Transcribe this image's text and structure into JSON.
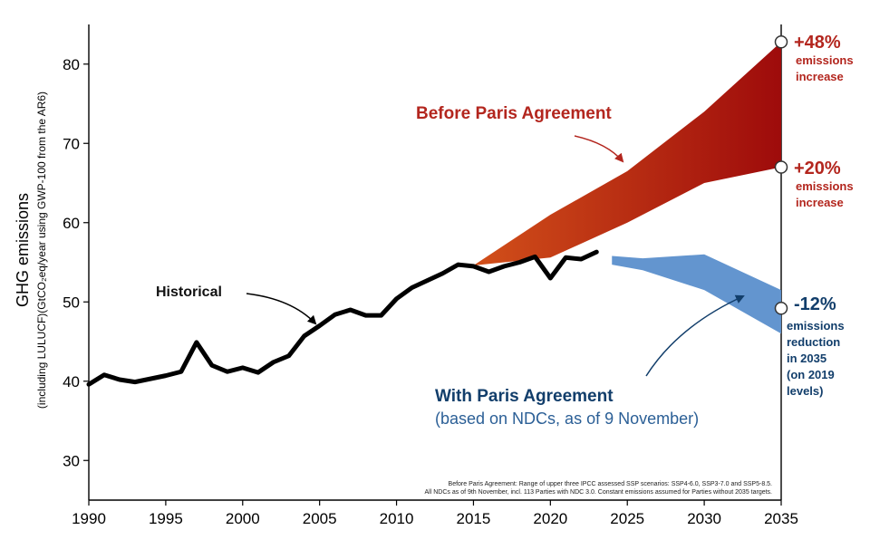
{
  "chart_data": {
    "type": "line",
    "ylabel": "GHG emissions",
    "ylabel_sub": "(including LULUCF)(GtCO₂eq/year using GWP-100 from the AR6)",
    "xlim": [
      1990,
      2035
    ],
    "ylim": [
      25,
      85
    ],
    "x_ticks": [
      "1990",
      "1995",
      "2000",
      "2005",
      "2010",
      "2015",
      "2020",
      "2025",
      "2030",
      "2035"
    ],
    "y_ticks": [
      "30",
      "40",
      "50",
      "60",
      "70",
      "80"
    ],
    "series": [
      {
        "name": "Historical",
        "color": "#000000",
        "x": [
          1990,
          1991,
          1992,
          1993,
          1994,
          1995,
          1996,
          1997,
          1998,
          1999,
          2000,
          2001,
          2002,
          2003,
          2004,
          2005,
          2006,
          2007,
          2008,
          2009,
          2010,
          2011,
          2012,
          2013,
          2014,
          2015,
          2016,
          2017,
          2018,
          2019,
          2020,
          2021,
          2022,
          2023
        ],
        "y": [
          39.6,
          40.8,
          40.2,
          39.9,
          40.3,
          40.7,
          41.2,
          44.9,
          42.0,
          41.2,
          41.7,
          41.1,
          42.4,
          43.2,
          45.7,
          47.0,
          48.4,
          49.0,
          48.3,
          48.3,
          50.4,
          51.8,
          52.7,
          53.6,
          54.7,
          54.5,
          53.8,
          54.5,
          55.0,
          55.7,
          53.0,
          55.6,
          55.4,
          56.3
        ]
      }
    ],
    "bands": [
      {
        "label": "Before Paris Agreement",
        "color_start": "#d2501a",
        "color_end": "#9e0b0b",
        "x": [
          2015,
          2020,
          2025,
          2030,
          2035
        ],
        "upper": [
          54.6,
          61.0,
          66.5,
          74.0,
          82.8
        ],
        "lower": [
          54.6,
          55.6,
          60.0,
          65.0,
          67.0
        ]
      },
      {
        "label": "With Paris Agreement",
        "color": "#5b8fcc",
        "x": [
          2024,
          2026,
          2030,
          2035
        ],
        "upper": [
          55.8,
          55.5,
          56.0,
          51.5
        ],
        "lower": [
          54.7,
          54.0,
          51.5,
          46.0
        ]
      }
    ],
    "markers": [
      {
        "x": 2035,
        "y": 82.8
      },
      {
        "x": 2035,
        "y": 67.0
      },
      {
        "x": 2035,
        "y": 49.2
      }
    ],
    "annotations": {
      "historical": "Historical",
      "before_title": "Before Paris Agreement",
      "plus48": "+48%",
      "plus48_sub": [
        "emissions",
        "increase"
      ],
      "plus20": "+20%",
      "plus20_sub": [
        "emissions",
        "increase"
      ],
      "minus12": "-12%",
      "minus12_sub": [
        "emissions",
        "reduction",
        "in 2035",
        "(on 2019",
        "levels)"
      ],
      "with_title": "With Paris Agreement",
      "with_sub": "(based on NDCs, as of 9 November)",
      "footnote_1": "Before Paris Agreement: Range of upper three IPCC assessed SSP scenarios: SSP4-6.0, SSP3-7.0 and SSP5-8.5.",
      "footnote_2": "All NDCs as of 9th November, incl. 113 Parties with NDC 3.0. Constant emissions assumed for Parties without 2035 targets."
    },
    "grid": false,
    "legend": "none"
  }
}
